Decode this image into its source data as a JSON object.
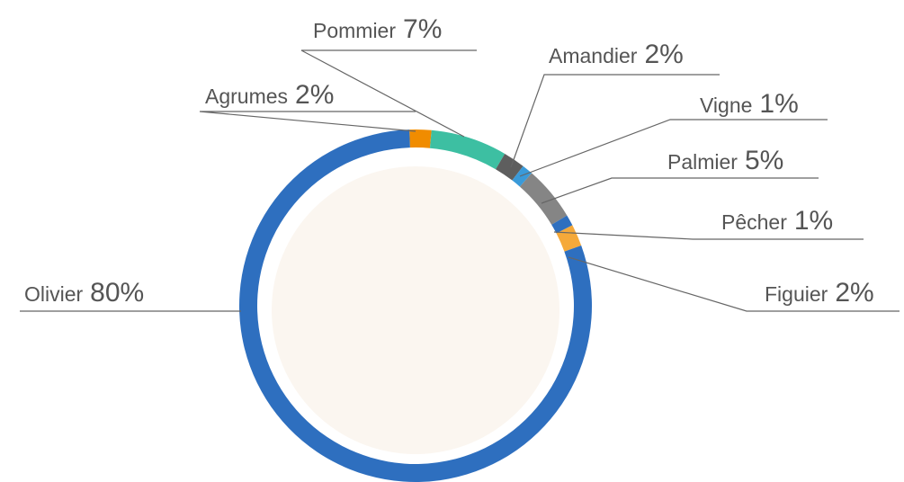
{
  "chart_data": {
    "type": "donut",
    "categories": [
      "Agrumes",
      "Pommier",
      "Amandier",
      "Vigne",
      "Palmier",
      "Pêcher",
      "Figuier",
      "Olivier"
    ],
    "values": [
      2,
      7,
      2,
      1,
      5,
      1,
      2,
      80
    ],
    "value_labels": [
      "2%",
      "7%",
      "2%",
      "1%",
      "5%",
      "1%",
      "2%",
      "80%"
    ],
    "colors": [
      "#f08c00",
      "#3dbfa2",
      "#5e5e5e",
      "#3a9ad9",
      "#858585",
      "#2e6fbf",
      "#f5a93a",
      "#2e6fbf"
    ]
  }
}
